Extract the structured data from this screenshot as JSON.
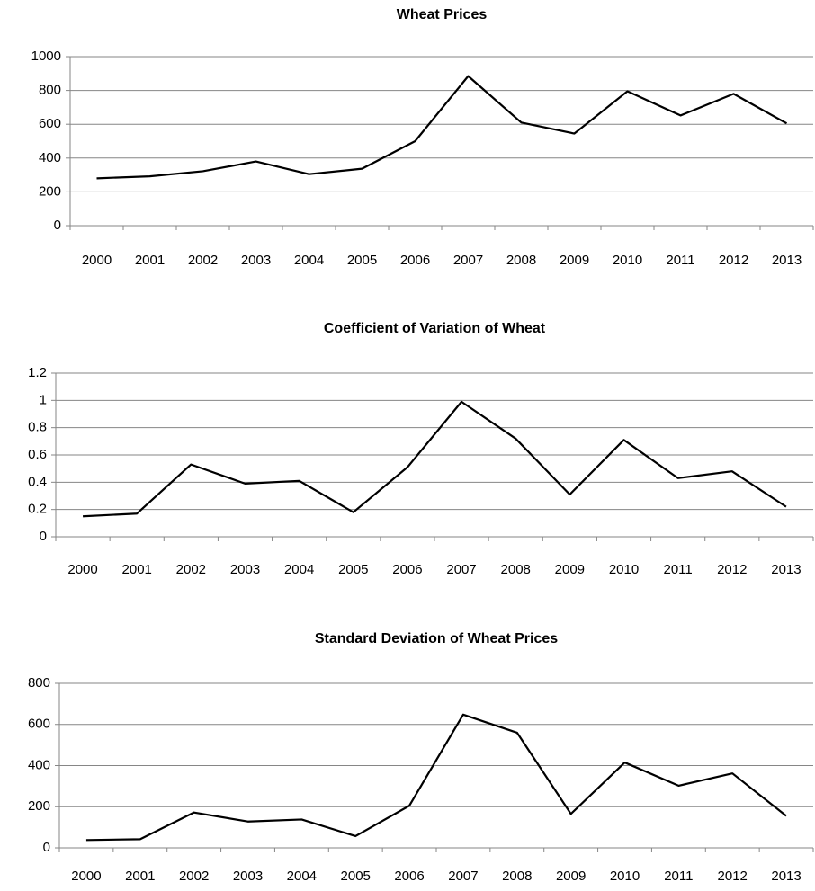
{
  "chart_data": [
    {
      "type": "line",
      "title": "Wheat Prices",
      "categories": [
        "2000",
        "2001",
        "2002",
        "2003",
        "2004",
        "2005",
        "2006",
        "2007",
        "2008",
        "2009",
        "2010",
        "2011",
        "2012",
        "2013"
      ],
      "series": [
        {
          "name": "Wheat Prices",
          "color": "#000000",
          "values": [
            280,
            292,
            322,
            380,
            305,
            337,
            500,
            885,
            610,
            545,
            795,
            652,
            780,
            605
          ]
        }
      ],
      "ylim": [
        0,
        1000
      ],
      "yticks": [
        0,
        200,
        400,
        600,
        800,
        1000
      ],
      "grid": true
    },
    {
      "type": "line",
      "title": "Coefficient of Variation of Wheat",
      "categories": [
        "2000",
        "2001",
        "2002",
        "2003",
        "2004",
        "2005",
        "2006",
        "2007",
        "2008",
        "2009",
        "2010",
        "2011",
        "2012",
        "2013"
      ],
      "series": [
        {
          "name": "Coefficient of Variation",
          "color": "#000000",
          "values": [
            0.15,
            0.17,
            0.53,
            0.39,
            0.41,
            0.18,
            0.51,
            0.99,
            0.72,
            0.31,
            0.71,
            0.43,
            0.48,
            0.22
          ]
        }
      ],
      "ylim": [
        0,
        1.2
      ],
      "yticks": [
        0,
        0.2,
        0.4,
        0.6,
        0.8,
        1,
        1.2
      ],
      "grid": true
    },
    {
      "type": "line",
      "title": "Standard Deviation of Wheat Prices",
      "categories": [
        "2000",
        "2001",
        "2002",
        "2003",
        "2004",
        "2005",
        "2006",
        "2007",
        "2008",
        "2009",
        "2010",
        "2011",
        "2012",
        "2013"
      ],
      "series": [
        {
          "name": "Standard Deviation",
          "color": "#000000",
          "values": [
            38,
            42,
            172,
            128,
            138,
            57,
            205,
            648,
            560,
            165,
            415,
            302,
            362,
            155
          ]
        }
      ],
      "ylim": [
        0,
        800
      ],
      "yticks": [
        0,
        200,
        400,
        600,
        800
      ],
      "grid": true
    }
  ]
}
